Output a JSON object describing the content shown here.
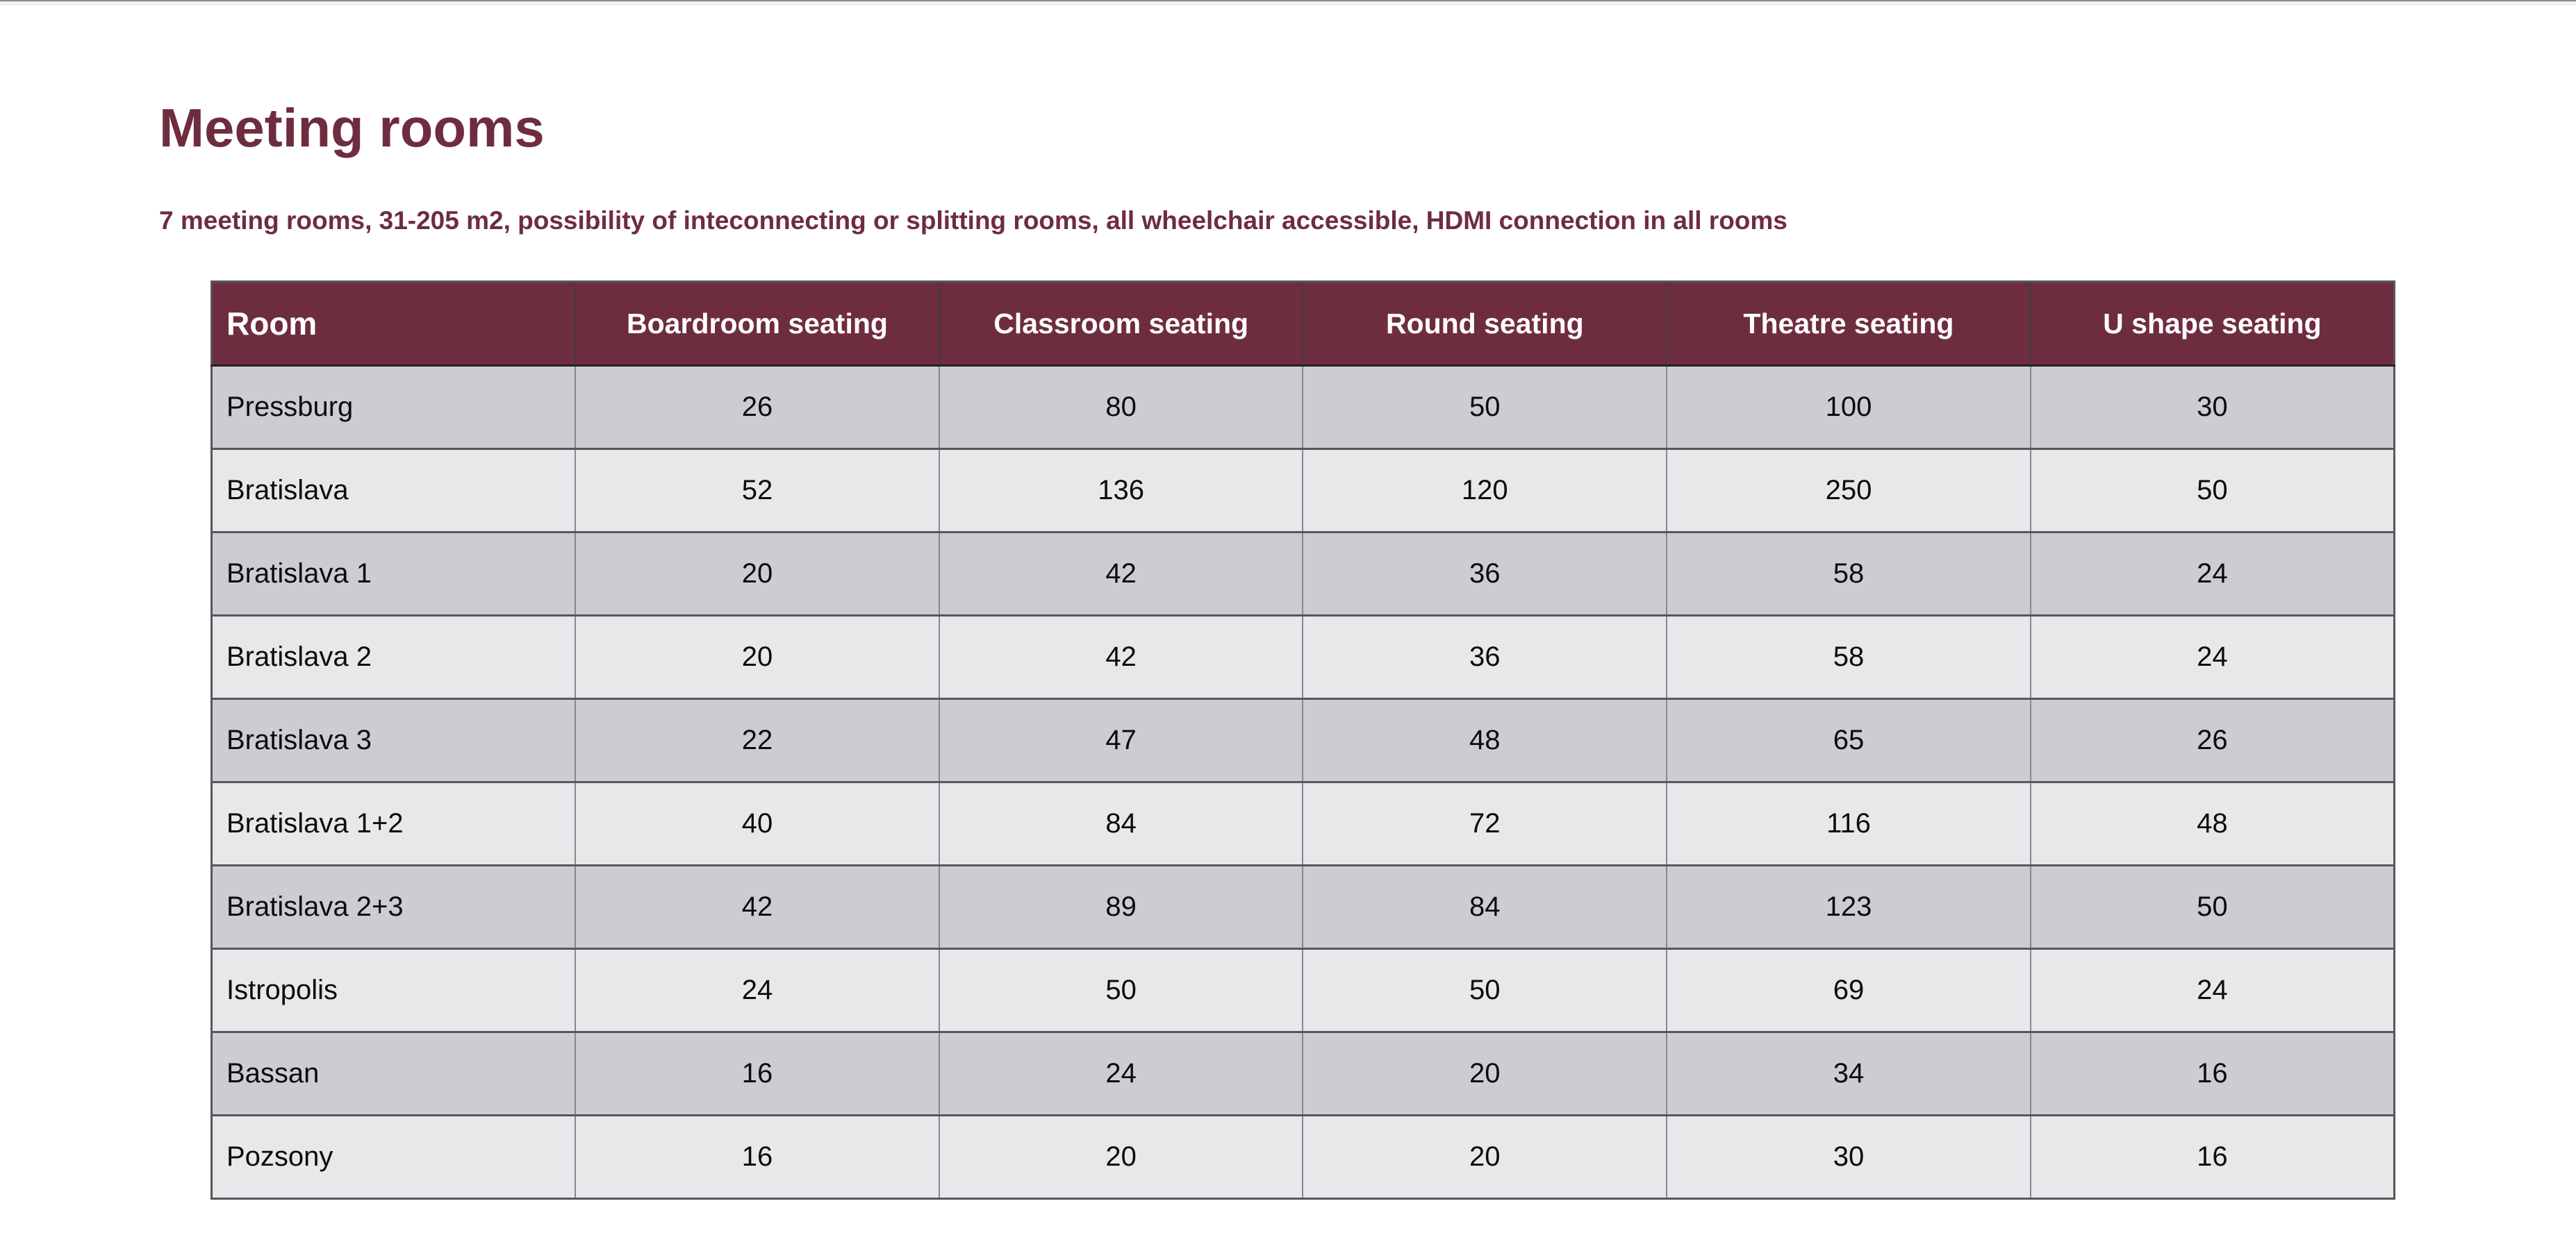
{
  "page": {
    "title": "Meeting rooms",
    "subtitle": "7 meeting rooms, 31-205 m2, possibility of inteconnecting or splitting rooms, all wheelchair accessible, HDMI connection in all rooms"
  },
  "colors": {
    "accent": "#6e2d3e",
    "header_bg": "#6e2d3e",
    "row_odd": "#cbcdd2",
    "row_even": "#e6e8ea"
  },
  "table": {
    "columns": [
      "Room",
      "Boardroom seating",
      "Classroom seating",
      "Round seating",
      "Theatre seating",
      "U shape seating"
    ],
    "rows": [
      {
        "room": "Pressburg",
        "values": [
          26,
          80,
          50,
          100,
          30
        ]
      },
      {
        "room": "Bratislava",
        "values": [
          52,
          136,
          120,
          250,
          50
        ]
      },
      {
        "room": "Bratislava 1",
        "values": [
          20,
          42,
          36,
          58,
          24
        ]
      },
      {
        "room": "Bratislava 2",
        "values": [
          20,
          42,
          36,
          58,
          24
        ]
      },
      {
        "room": "Bratislava 3",
        "values": [
          22,
          47,
          48,
          65,
          26
        ]
      },
      {
        "room": "Bratislava 1+2",
        "values": [
          40,
          84,
          72,
          116,
          48
        ]
      },
      {
        "room": "Bratislava 2+3",
        "values": [
          42,
          89,
          84,
          123,
          50
        ]
      },
      {
        "room": "Istropolis",
        "values": [
          24,
          50,
          50,
          69,
          24
        ]
      },
      {
        "room": "Bassan",
        "values": [
          16,
          24,
          20,
          34,
          16
        ]
      },
      {
        "room": "Pozsony",
        "values": [
          16,
          20,
          20,
          30,
          16
        ]
      }
    ]
  }
}
